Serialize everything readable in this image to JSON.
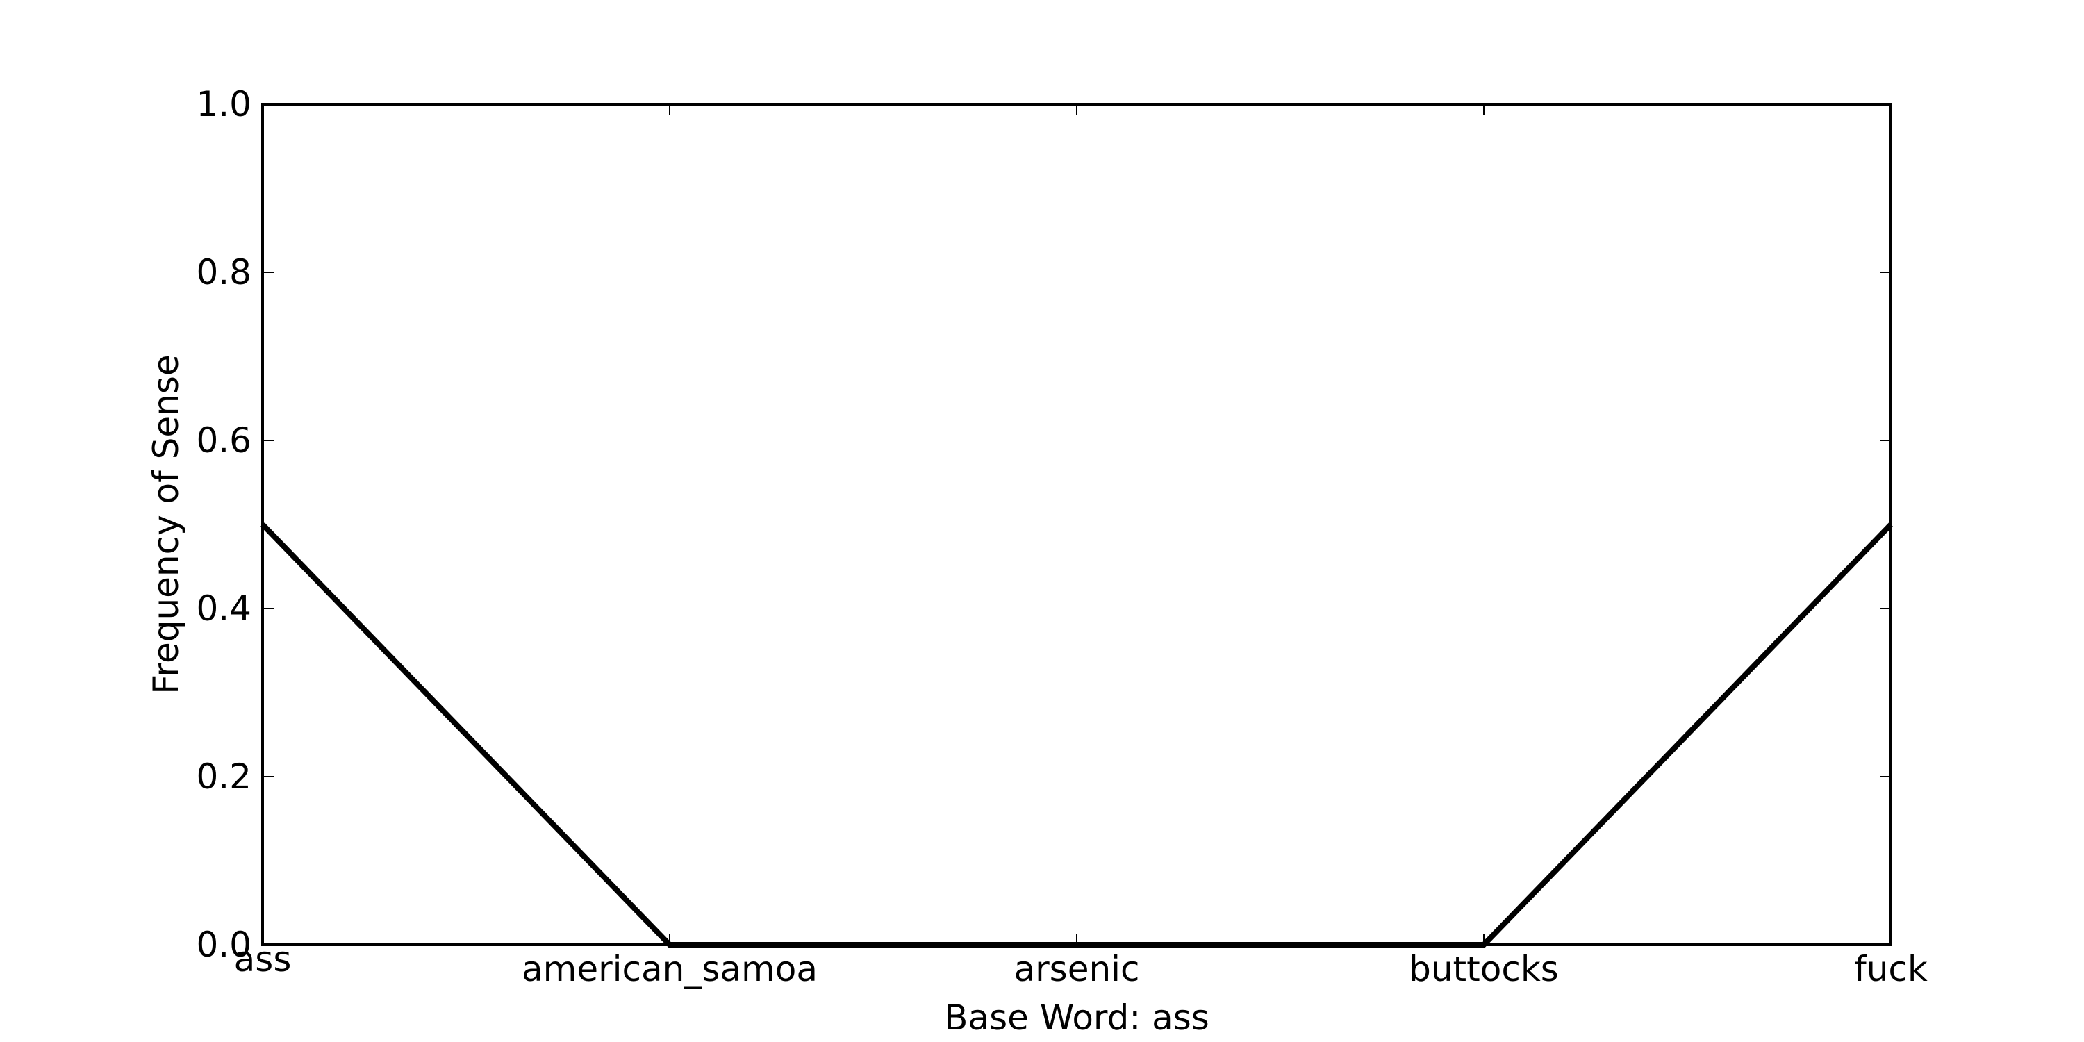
{
  "chart_data": {
    "type": "line",
    "categories": [
      "ass",
      "american_samoa",
      "arsenic",
      "buttocks",
      "fuck"
    ],
    "series": [
      {
        "values": [
          0.5,
          0.0,
          0.0,
          0.0,
          0.5
        ],
        "color": "#000000"
      }
    ],
    "xlabel": "Base Word: ass",
    "ylabel": "Frequency of Sense",
    "ylim": [
      0.0,
      1.0
    ],
    "yticks": [
      "0.0",
      "0.2",
      "0.4",
      "0.6",
      "0.8",
      "1.0"
    ],
    "grid": false
  }
}
